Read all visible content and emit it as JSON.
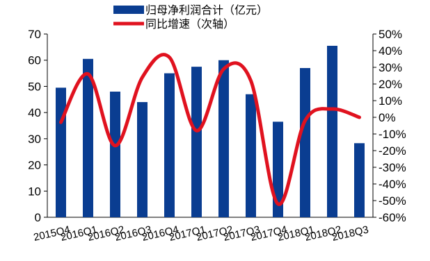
{
  "chart_data": {
    "type": "bar+line",
    "categories": [
      "2015Q4",
      "2016Q1",
      "2016Q2",
      "2016Q3",
      "2016Q4",
      "2017Q1",
      "2017Q2",
      "2017Q3",
      "2017Q4",
      "2018Q1",
      "2018Q2",
      "2018Q3"
    ],
    "series": [
      {
        "name": "归母净利润合计（亿元）",
        "type": "bar",
        "axis": "left",
        "color": "#0a3d91",
        "values": [
          49.5,
          60.5,
          48.0,
          44.0,
          55.0,
          57.5,
          60.0,
          47.0,
          36.5,
          57.0,
          65.5,
          28.3
        ]
      },
      {
        "name": "同比增速（次轴）",
        "type": "line",
        "axis": "right",
        "color": "#e0121f",
        "values": [
          -3,
          26,
          -17,
          24,
          36,
          -8,
          29,
          22,
          -52,
          -2,
          5,
          0
        ]
      }
    ],
    "left_axis": {
      "min": 0,
      "max": 70,
      "step": 10,
      "ticks": [
        "0",
        "10",
        "20",
        "30",
        "40",
        "50",
        "60",
        "70"
      ]
    },
    "right_axis": {
      "min": -60,
      "max": 50,
      "step": 10,
      "ticks": [
        "-60%",
        "-50%",
        "-40%",
        "-30%",
        "-20%",
        "-10%",
        "0%",
        "10%",
        "20%",
        "30%",
        "40%",
        "50%"
      ]
    },
    "legend_position": "top-center",
    "grid": false
  }
}
